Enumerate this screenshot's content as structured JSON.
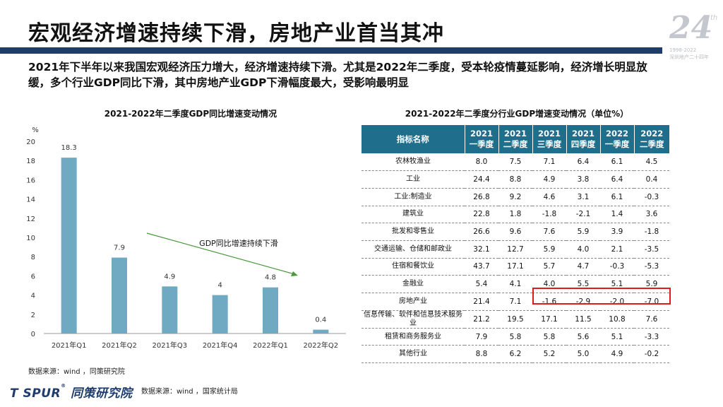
{
  "header": {
    "title": "宏观经济增速持续下滑，房地产业首当其冲",
    "watermark_num": "24",
    "watermark_th": "th",
    "watermark_years": "1998-2022",
    "watermark_sub": "深圳地产二十四年"
  },
  "summary": "2021年下半年以来我国宏观经济压力增大，经济增速持续下滑。尤其是2022年二季度，受本轮疫情蔓延影响，经济增长明显放缓，多个行业GDP同比下滑，其中房地产业GDP下滑幅度最大，受影响最明显",
  "chart_data": {
    "type": "bar",
    "title": "2021-2022年二季度GDP同比增速变动情况",
    "ylabel": "%",
    "categories": [
      "2021年Q1",
      "2021年Q2",
      "2021年Q3",
      "2021年Q4",
      "2022年Q1",
      "2022年Q2"
    ],
    "values": [
      18.3,
      7.9,
      4.9,
      4,
      4.8,
      0.4
    ],
    "value_labels": [
      "18.3",
      "7.9",
      "4.9",
      "4",
      "4.8",
      "0.4"
    ],
    "ylim": [
      0,
      20
    ],
    "yticks": [
      "0",
      "2",
      "4",
      "6",
      "8",
      "10",
      "12",
      "14",
      "16",
      "18",
      "20"
    ],
    "bar_color": "#70a9c2",
    "annotation": "GDP同比增速持续下滑",
    "annotation_color": "#4a9a3c",
    "grid": false
  },
  "table": {
    "title": "2021-2022年二季度分行业GDP增速变动情况（单位%）",
    "header_name": "指标名称",
    "columns": [
      {
        "year": "2021",
        "quarter": "一季度"
      },
      {
        "year": "2021",
        "quarter": "二季度"
      },
      {
        "year": "2021",
        "quarter": "三季度"
      },
      {
        "year": "2021",
        "quarter": "四季度"
      },
      {
        "year": "2022",
        "quarter": "一季度"
      },
      {
        "year": "2022",
        "quarter": "二季度"
      }
    ],
    "rows": [
      {
        "name": "农林牧渔业",
        "values": [
          "8.0",
          "7.5",
          "7.1",
          "6.4",
          "6.1",
          "4.5"
        ]
      },
      {
        "name": "工业",
        "values": [
          "24.4",
          "8.8",
          "4.9",
          "3.8",
          "6.4",
          "0.4"
        ]
      },
      {
        "name": "工业:制造业",
        "values": [
          "26.8",
          "9.2",
          "4.6",
          "3.1",
          "6.1",
          "-0.3"
        ]
      },
      {
        "name": "建筑业",
        "values": [
          "22.8",
          "1.8",
          "-1.8",
          "-2.1",
          "1.4",
          "3.6"
        ]
      },
      {
        "name": "批发和零售业",
        "values": [
          "26.6",
          "9.6",
          "7.6",
          "5.9",
          "3.9",
          "-1.8"
        ]
      },
      {
        "name": "交通运输、仓储和邮政业",
        "values": [
          "32.1",
          "12.7",
          "5.9",
          "4.0",
          "2.1",
          "-3.5"
        ]
      },
      {
        "name": "住宿和餐饮业",
        "values": [
          "43.7",
          "17.1",
          "5.7",
          "4.7",
          "-0.3",
          "-5.3"
        ]
      },
      {
        "name": "金融业",
        "values": [
          "5.4",
          "4.1",
          "4.0",
          "5.5",
          "5.1",
          "5.9"
        ]
      },
      {
        "name": "房地产业",
        "values": [
          "21.4",
          "7.1",
          "-1.6",
          "-2.9",
          "-2.0",
          "-7.0"
        ]
      },
      {
        "name": "信息传输、软件和信息技术服务业",
        "values": [
          "21.2",
          "19.5",
          "17.1",
          "11.5",
          "10.8",
          "7.6"
        ]
      },
      {
        "name": "租赁和商务服务业",
        "values": [
          "7.9",
          "5.8",
          "5.8",
          "5.6",
          "5.1",
          "-3.3"
        ]
      },
      {
        "name": "其他行业",
        "values": [
          "8.8",
          "6.2",
          "5.2",
          "5.0",
          "4.9",
          "-0.2"
        ]
      }
    ],
    "highlight_row": "房地产业",
    "header_color": "#1f6e8c",
    "highlight_color": "#e01b1b"
  },
  "footer": {
    "source_chart": "数据来源：wind ，同策研究院",
    "logo_text": "T SPUR",
    "logo_reg": "®",
    "logo_cn": "同策研究院",
    "source_page": "数据来源：wind ，国家统计局"
  },
  "colors": {
    "title_bar": "#1f3c6e"
  }
}
